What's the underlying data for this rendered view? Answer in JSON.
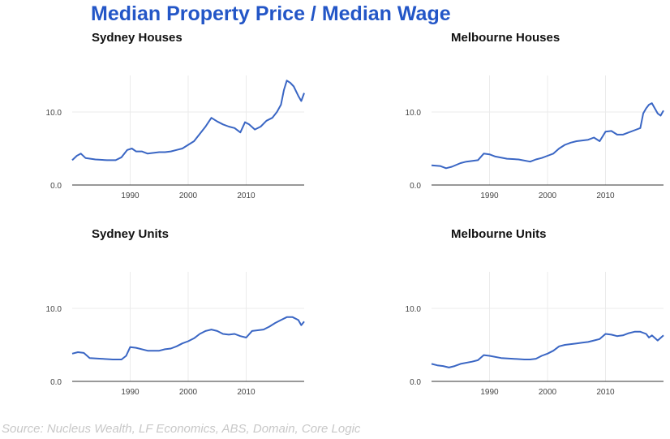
{
  "title": "Median Property Price / Median Wage",
  "source": "Source: Nucleus Wealth, LF Economics, ABS, Domain, Core Logic",
  "colors": {
    "title": "#2356c7",
    "series": "#3a66c4",
    "grid": "#ebebeb",
    "axis": "#333333"
  },
  "chart_data": [
    {
      "type": "line",
      "title": "Sydney Houses",
      "xlim": [
        1980,
        2020
      ],
      "ylim": [
        0,
        15
      ],
      "xticks": [
        1990,
        2000,
        2010
      ],
      "xtick_labels": [
        "1990",
        "2000",
        "2010"
      ],
      "yticks": [
        0,
        10
      ],
      "ytick_labels": [
        "0.0",
        "10.0"
      ],
      "x": [
        1980,
        1980.8,
        1981.5,
        1982.3,
        1984,
        1986,
        1987.5,
        1988.5,
        1989.5,
        1990.3,
        1991,
        1992,
        1993,
        1995,
        1996,
        1997,
        1998,
        1999,
        2000,
        2001,
        2002,
        2003,
        2004,
        2005,
        2006,
        2007,
        2008,
        2009,
        2009.8,
        2010.5,
        2011.5,
        2012.5,
        2013.5,
        2014.5,
        2015.3,
        2016,
        2016.5,
        2017,
        2017.6,
        2018.2,
        2019,
        2019.5,
        2020
      ],
      "series": [
        {
          "values": [
            3.4,
            4.0,
            4.3,
            3.7,
            3.5,
            3.4,
            3.4,
            3.8,
            4.8,
            5.0,
            4.6,
            4.6,
            4.3,
            4.5,
            4.5,
            4.6,
            4.8,
            5.0,
            5.5,
            6.0,
            7.0,
            8.0,
            9.2,
            8.7,
            8.3,
            8.0,
            7.8,
            7.2,
            8.6,
            8.3,
            7.6,
            8.0,
            8.8,
            9.2,
            10.0,
            11.0,
            13.0,
            14.3,
            14.0,
            13.5,
            12.2,
            11.5,
            12.6
          ]
        }
      ]
    },
    {
      "type": "line",
      "title": "Melbourne Houses",
      "xlim": [
        1980,
        2020
      ],
      "ylim": [
        0,
        15
      ],
      "xticks": [
        1990,
        2000,
        2010
      ],
      "xtick_labels": [
        "1990",
        "2000",
        "2010"
      ],
      "yticks": [
        0,
        10
      ],
      "ytick_labels": [
        "0.0",
        "10.0"
      ],
      "x": [
        1980,
        1981.5,
        1982.5,
        1983.5,
        1985,
        1986,
        1988,
        1989,
        1990,
        1991,
        1993,
        1995,
        1997,
        1998,
        1999,
        2000,
        2001,
        2002,
        2003,
        2004,
        2005,
        2007,
        2008,
        2009,
        2010,
        2011,
        2012,
        2013,
        2014,
        2015,
        2016,
        2016.5,
        2017,
        2017.5,
        2018,
        2019,
        2019.5,
        2020
      ],
      "series": [
        {
          "values": [
            2.7,
            2.6,
            2.3,
            2.5,
            3.0,
            3.2,
            3.4,
            4.3,
            4.2,
            3.9,
            3.6,
            3.5,
            3.2,
            3.5,
            3.7,
            4.0,
            4.3,
            5.0,
            5.5,
            5.8,
            6.0,
            6.2,
            6.5,
            6.0,
            7.3,
            7.4,
            6.9,
            6.9,
            7.2,
            7.5,
            7.8,
            9.8,
            10.5,
            11.0,
            11.2,
            9.8,
            9.5,
            10.2
          ]
        }
      ]
    },
    {
      "type": "line",
      "title": "Sydney Units",
      "xlim": [
        1980,
        2020
      ],
      "ylim": [
        0,
        15
      ],
      "xticks": [
        1990,
        2000,
        2010
      ],
      "xtick_labels": [
        "1990",
        "2000",
        "2010"
      ],
      "yticks": [
        0,
        10
      ],
      "ytick_labels": [
        "0.0",
        "10.0"
      ],
      "x": [
        1980,
        1981,
        1982,
        1983,
        1985,
        1987,
        1988.5,
        1989.3,
        1990,
        1991,
        1993,
        1995,
        1996,
        1997,
        1998,
        1999,
        2000,
        2001,
        2002,
        2003,
        2004,
        2005,
        2006,
        2007,
        2008,
        2009,
        2010,
        2011,
        2012,
        2013,
        2014,
        2015,
        2016,
        2017,
        2018,
        2019,
        2019.5,
        2020
      ],
      "series": [
        {
          "values": [
            3.8,
            4.0,
            3.9,
            3.2,
            3.1,
            3.0,
            3.0,
            3.5,
            4.7,
            4.6,
            4.2,
            4.2,
            4.4,
            4.5,
            4.8,
            5.2,
            5.5,
            5.9,
            6.5,
            6.9,
            7.1,
            6.9,
            6.5,
            6.4,
            6.5,
            6.2,
            6.0,
            6.9,
            7.0,
            7.1,
            7.5,
            8.0,
            8.4,
            8.8,
            8.8,
            8.4,
            7.7,
            8.2
          ]
        }
      ]
    },
    {
      "type": "line",
      "title": "Melbourne Units",
      "xlim": [
        1980,
        2020
      ],
      "ylim": [
        0,
        15
      ],
      "xticks": [
        1990,
        2000,
        2010
      ],
      "xtick_labels": [
        "1990",
        "2000",
        "2010"
      ],
      "yticks": [
        0,
        10
      ],
      "ytick_labels": [
        "0.0",
        "10.0"
      ],
      "x": [
        1980,
        1981,
        1982,
        1983,
        1984,
        1985,
        1987,
        1988,
        1989,
        1990,
        1992,
        1994,
        1996,
        1997,
        1998,
        1999,
        2000,
        2001,
        2002,
        2003,
        2004,
        2005,
        2006,
        2007,
        2008,
        2009,
        2010,
        2011,
        2012,
        2013,
        2014,
        2015,
        2016,
        2017,
        2017.5,
        2018,
        2019,
        2020
      ],
      "series": [
        {
          "values": [
            2.4,
            2.2,
            2.1,
            1.9,
            2.1,
            2.4,
            2.7,
            2.9,
            3.6,
            3.5,
            3.2,
            3.1,
            3.0,
            3.0,
            3.1,
            3.5,
            3.8,
            4.2,
            4.8,
            5.0,
            5.1,
            5.2,
            5.3,
            5.4,
            5.6,
            5.8,
            6.5,
            6.4,
            6.2,
            6.3,
            6.6,
            6.8,
            6.8,
            6.5,
            6.0,
            6.3,
            5.6,
            6.3
          ]
        }
      ]
    }
  ]
}
